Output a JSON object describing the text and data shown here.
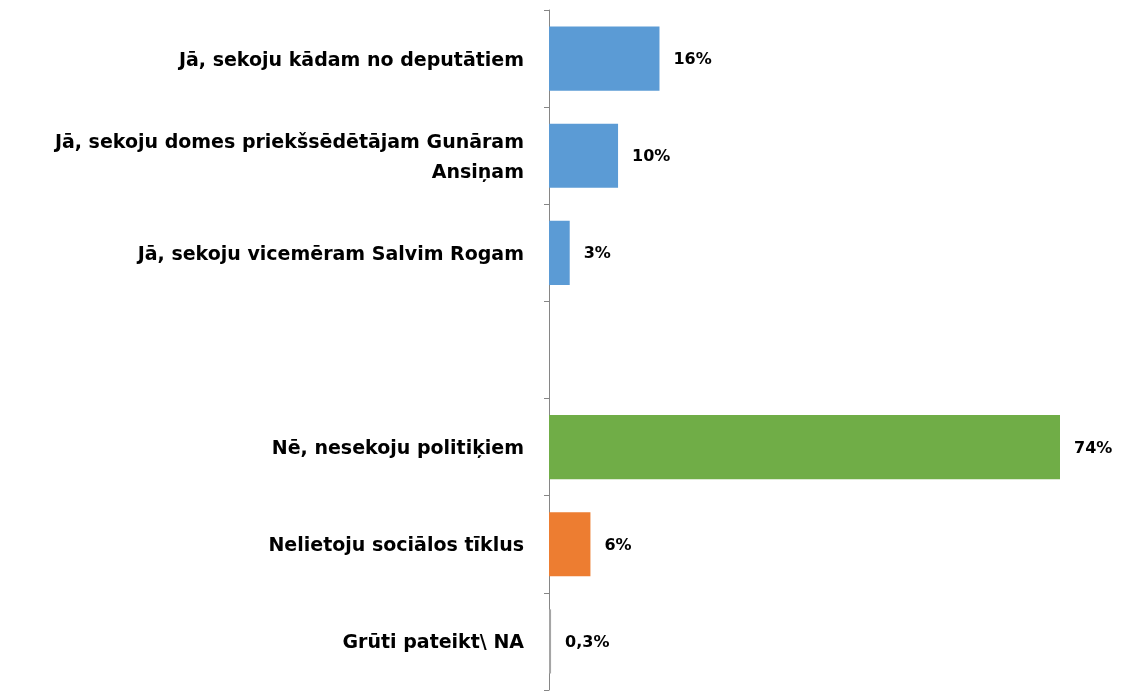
{
  "chart_data": {
    "type": "bar",
    "orientation": "horizontal",
    "categories": [
      "Jā, sekoju kādam no deputātiem",
      "Jā, sekoju domes priekšsēdētājam Gunāram Ansiņam",
      "Jā, sekoju vicemēram Salvim Rogam",
      null,
      "Nē, nesekoju politiķiem",
      "Nelietoju sociālos tīklus",
      "Grūti pateikt\\ NA"
    ],
    "values": [
      16,
      10,
      3,
      null,
      74,
      6,
      0.3
    ],
    "colors": [
      "#5b9bd5",
      "#5b9bd5",
      "#5b9bd5",
      "#5b9bd5",
      "#70ad47",
      "#ed7d31",
      "#a5a5a5"
    ],
    "value_labels": [
      "16%",
      "10%",
      "3%",
      null,
      "74%",
      "6%",
      "0,3%"
    ]
  }
}
